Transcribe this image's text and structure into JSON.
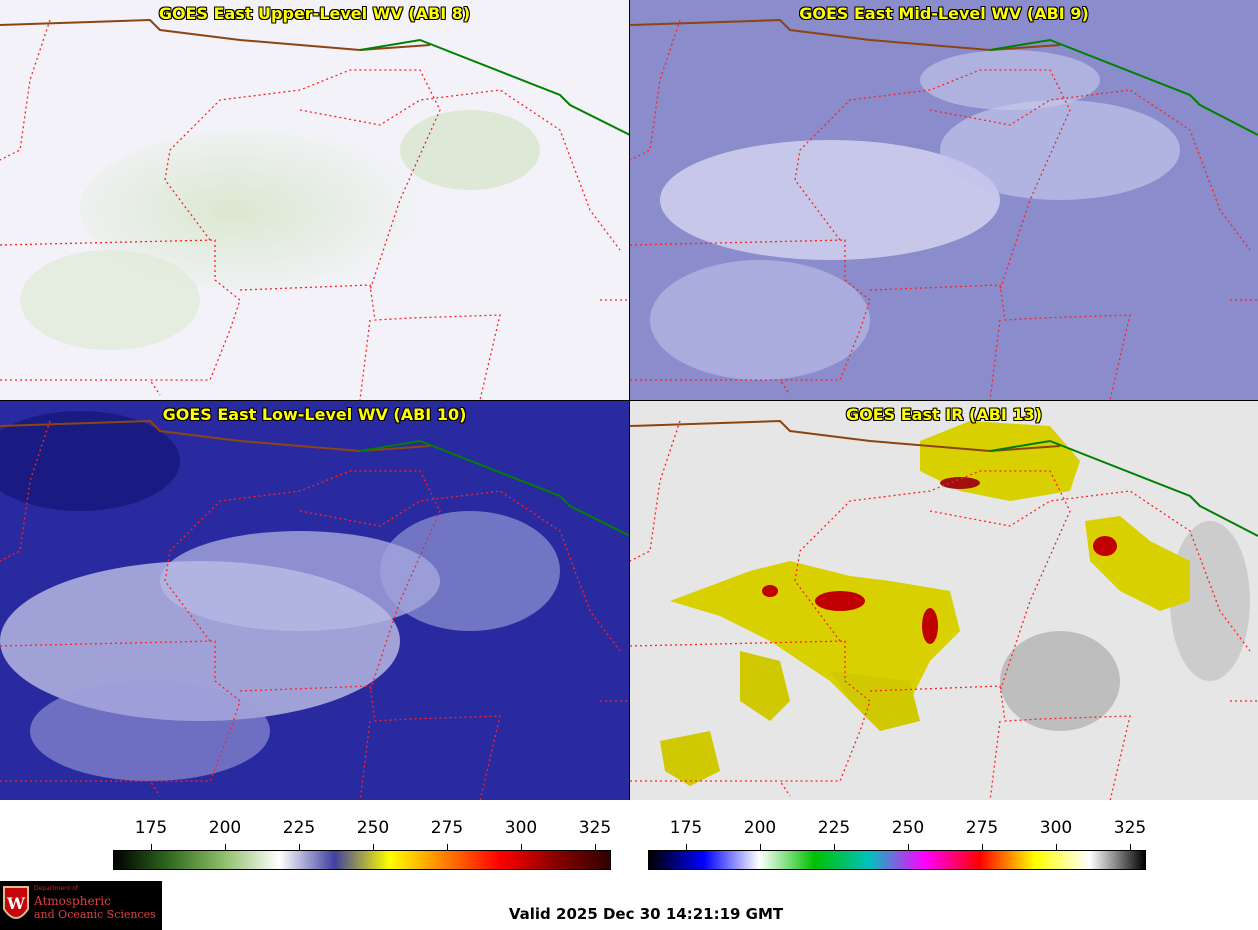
{
  "panels": [
    {
      "title": "GOES East Upper-Level WV (ABI 8)"
    },
    {
      "title": "GOES East Mid-Level WV (ABI 9)"
    },
    {
      "title": "GOES East Low-Level WV (ABI 10)"
    },
    {
      "title": "GOES East IR (ABI 13)"
    }
  ],
  "colorbar_wv": {
    "ticks": [
      "175",
      "200",
      "225",
      "250",
      "275",
      "300",
      "325"
    ],
    "colors": [
      "#000000",
      "#2f6a1e",
      "#8fbf6a",
      "#ffffff",
      "#4040a0",
      "#ffff00",
      "#ff8000",
      "#ff0000",
      "#8b0000",
      "#300000"
    ]
  },
  "colorbar_ir": {
    "ticks": [
      "175",
      "200",
      "225",
      "250",
      "275",
      "300",
      "325"
    ],
    "colors": [
      "#000000",
      "#0000ff",
      "#ffffff",
      "#00c000",
      "#00c0c0",
      "#ff00ff",
      "#ff0000",
      "#ffff00",
      "#ffffff",
      "#000000"
    ]
  },
  "logo": {
    "line1": "Department of",
    "line2": "Atmospheric",
    "line3": "and Oceanic Sciences"
  },
  "valid_time": "Valid 2025 Dec 30 14:21:19 GMT"
}
